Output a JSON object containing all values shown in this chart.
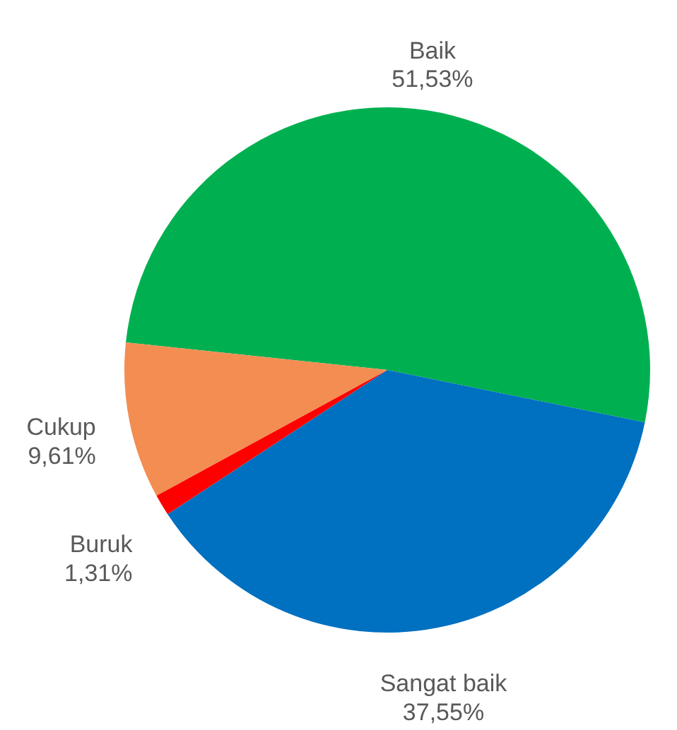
{
  "chart_data": {
    "type": "pie",
    "categories": [
      "Baik",
      "Sangat baik",
      "Buruk",
      "Cukup"
    ],
    "values": [
      51.53,
      37.55,
      1.31,
      9.61
    ],
    "colors": [
      "#00b050",
      "#0070c0",
      "#ff0000",
      "#f38d52"
    ],
    "value_labels": [
      "51,53%",
      "37,55%",
      "1,31%",
      "9,61%"
    ],
    "legend": false
  }
}
